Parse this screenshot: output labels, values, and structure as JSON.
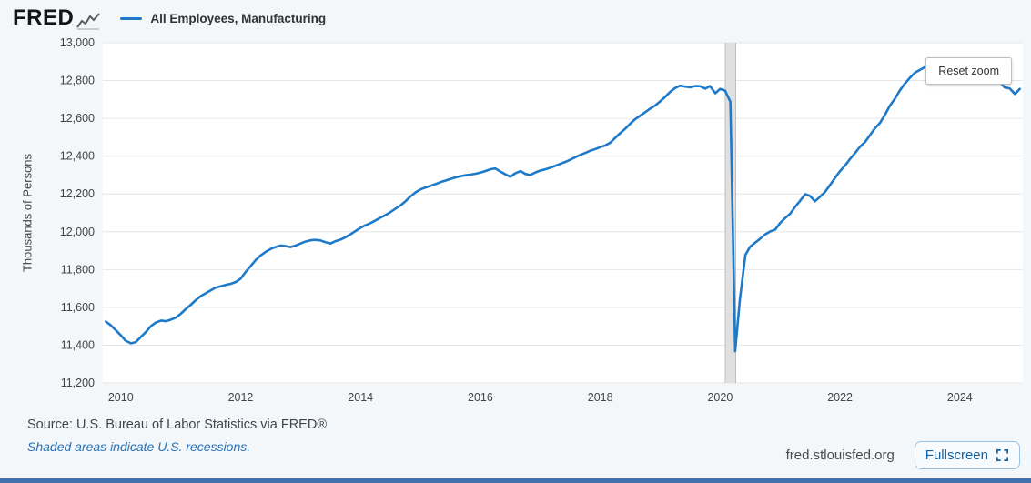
{
  "header": {
    "logo_text": "FRED",
    "legend": {
      "series_label": "All Employees, Manufacturing"
    }
  },
  "chart": {
    "reset_zoom_label": "Reset zoom"
  },
  "chart_data": {
    "type": "line",
    "title": "All Employees, Manufacturing",
    "xlabel": "",
    "ylabel": "Thousands of Persons",
    "xlim": [
      2009.7,
      2025.05
    ],
    "ylim": [
      11200,
      13000
    ],
    "y_tick_step": 200,
    "x_ticks": [
      2010,
      2012,
      2014,
      2016,
      2018,
      2020,
      2022,
      2024
    ],
    "grid": true,
    "legend_position": "top",
    "line_color": "#1e7ac9",
    "recession_bands": [
      {
        "start": 2020.085,
        "end": 2020.26
      }
    ],
    "series": [
      {
        "name": "All Employees, Manufacturing",
        "points": [
          [
            2009.75,
            11525
          ],
          [
            2009.83,
            11506
          ],
          [
            2009.92,
            11478
          ],
          [
            2010.0,
            11452
          ],
          [
            2010.08,
            11424
          ],
          [
            2010.17,
            11410
          ],
          [
            2010.25,
            11416
          ],
          [
            2010.33,
            11442
          ],
          [
            2010.42,
            11470
          ],
          [
            2010.5,
            11500
          ],
          [
            2010.58,
            11519
          ],
          [
            2010.67,
            11530
          ],
          [
            2010.75,
            11527
          ],
          [
            2010.83,
            11534
          ],
          [
            2010.92,
            11546
          ],
          [
            2011.0,
            11566
          ],
          [
            2011.08,
            11590
          ],
          [
            2011.17,
            11614
          ],
          [
            2011.25,
            11638
          ],
          [
            2011.33,
            11659
          ],
          [
            2011.42,
            11675
          ],
          [
            2011.5,
            11690
          ],
          [
            2011.58,
            11704
          ],
          [
            2011.67,
            11712
          ],
          [
            2011.75,
            11719
          ],
          [
            2011.83,
            11724
          ],
          [
            2011.92,
            11734
          ],
          [
            2012.0,
            11752
          ],
          [
            2012.08,
            11786
          ],
          [
            2012.17,
            11820
          ],
          [
            2012.25,
            11850
          ],
          [
            2012.33,
            11874
          ],
          [
            2012.42,
            11894
          ],
          [
            2012.5,
            11909
          ],
          [
            2012.58,
            11919
          ],
          [
            2012.67,
            11927
          ],
          [
            2012.75,
            11924
          ],
          [
            2012.83,
            11919
          ],
          [
            2012.92,
            11927
          ],
          [
            2013.0,
            11938
          ],
          [
            2013.08,
            11948
          ],
          [
            2013.17,
            11955
          ],
          [
            2013.25,
            11957
          ],
          [
            2013.33,
            11954
          ],
          [
            2013.42,
            11944
          ],
          [
            2013.5,
            11938
          ],
          [
            2013.58,
            11950
          ],
          [
            2013.67,
            11959
          ],
          [
            2013.75,
            11971
          ],
          [
            2013.83,
            11986
          ],
          [
            2013.92,
            12004
          ],
          [
            2014.0,
            12021
          ],
          [
            2014.08,
            12034
          ],
          [
            2014.17,
            12046
          ],
          [
            2014.25,
            12060
          ],
          [
            2014.33,
            12074
          ],
          [
            2014.42,
            12089
          ],
          [
            2014.5,
            12104
          ],
          [
            2014.58,
            12121
          ],
          [
            2014.67,
            12140
          ],
          [
            2014.75,
            12161
          ],
          [
            2014.83,
            12186
          ],
          [
            2014.92,
            12209
          ],
          [
            2015.0,
            12224
          ],
          [
            2015.08,
            12234
          ],
          [
            2015.17,
            12243
          ],
          [
            2015.25,
            12252
          ],
          [
            2015.33,
            12262
          ],
          [
            2015.42,
            12271
          ],
          [
            2015.5,
            12279
          ],
          [
            2015.58,
            12287
          ],
          [
            2015.67,
            12294
          ],
          [
            2015.75,
            12299
          ],
          [
            2015.83,
            12302
          ],
          [
            2015.92,
            12307
          ],
          [
            2016.0,
            12313
          ],
          [
            2016.08,
            12321
          ],
          [
            2016.17,
            12331
          ],
          [
            2016.25,
            12335
          ],
          [
            2016.33,
            12319
          ],
          [
            2016.42,
            12303
          ],
          [
            2016.5,
            12291
          ],
          [
            2016.58,
            12309
          ],
          [
            2016.67,
            12321
          ],
          [
            2016.75,
            12306
          ],
          [
            2016.83,
            12300
          ],
          [
            2016.92,
            12314
          ],
          [
            2017.0,
            12324
          ],
          [
            2017.08,
            12330
          ],
          [
            2017.17,
            12339
          ],
          [
            2017.25,
            12349
          ],
          [
            2017.33,
            12359
          ],
          [
            2017.42,
            12370
          ],
          [
            2017.5,
            12381
          ],
          [
            2017.58,
            12394
          ],
          [
            2017.67,
            12407
          ],
          [
            2017.75,
            12417
          ],
          [
            2017.83,
            12428
          ],
          [
            2017.92,
            12438
          ],
          [
            2018.0,
            12448
          ],
          [
            2018.08,
            12456
          ],
          [
            2018.17,
            12472
          ],
          [
            2018.25,
            12497
          ],
          [
            2018.33,
            12521
          ],
          [
            2018.42,
            12546
          ],
          [
            2018.5,
            12572
          ],
          [
            2018.58,
            12595
          ],
          [
            2018.67,
            12615
          ],
          [
            2018.75,
            12633
          ],
          [
            2018.83,
            12651
          ],
          [
            2018.92,
            12669
          ],
          [
            2019.0,
            12690
          ],
          [
            2019.08,
            12713
          ],
          [
            2019.17,
            12741
          ],
          [
            2019.25,
            12761
          ],
          [
            2019.33,
            12773
          ],
          [
            2019.42,
            12768
          ],
          [
            2019.5,
            12764
          ],
          [
            2019.58,
            12771
          ],
          [
            2019.67,
            12770
          ],
          [
            2019.75,
            12757
          ],
          [
            2019.83,
            12771
          ],
          [
            2019.92,
            12733
          ],
          [
            2020.0,
            12756
          ],
          [
            2020.08,
            12747
          ],
          [
            2020.17,
            12688
          ],
          [
            2020.25,
            11368
          ],
          [
            2020.33,
            11643
          ],
          [
            2020.42,
            11877
          ],
          [
            2020.5,
            11921
          ],
          [
            2020.58,
            11941
          ],
          [
            2020.67,
            11964
          ],
          [
            2020.75,
            11986
          ],
          [
            2020.83,
            12001
          ],
          [
            2020.92,
            12012
          ],
          [
            2021.0,
            12046
          ],
          [
            2021.08,
            12071
          ],
          [
            2021.17,
            12096
          ],
          [
            2021.25,
            12131
          ],
          [
            2021.33,
            12162
          ],
          [
            2021.42,
            12199
          ],
          [
            2021.5,
            12189
          ],
          [
            2021.58,
            12161
          ],
          [
            2021.67,
            12186
          ],
          [
            2021.75,
            12211
          ],
          [
            2021.83,
            12246
          ],
          [
            2021.92,
            12286
          ],
          [
            2022.0,
            12321
          ],
          [
            2022.08,
            12349
          ],
          [
            2022.17,
            12386
          ],
          [
            2022.25,
            12416
          ],
          [
            2022.33,
            12449
          ],
          [
            2022.42,
            12476
          ],
          [
            2022.5,
            12511
          ],
          [
            2022.58,
            12546
          ],
          [
            2022.67,
            12577
          ],
          [
            2022.75,
            12619
          ],
          [
            2022.83,
            12666
          ],
          [
            2022.92,
            12706
          ],
          [
            2023.0,
            12749
          ],
          [
            2023.08,
            12783
          ],
          [
            2023.17,
            12816
          ],
          [
            2023.25,
            12841
          ],
          [
            2023.33,
            12856
          ],
          [
            2023.42,
            12871
          ],
          [
            2023.5,
            12881
          ],
          [
            2023.58,
            12889
          ],
          [
            2023.67,
            12883
          ],
          [
            2023.75,
            12886
          ],
          [
            2023.83,
            12871
          ],
          [
            2023.92,
            12863
          ],
          [
            2024.0,
            12861
          ],
          [
            2024.08,
            12853
          ],
          [
            2024.17,
            12846
          ],
          [
            2024.25,
            12841
          ],
          [
            2024.33,
            12836
          ],
          [
            2024.42,
            12831
          ],
          [
            2024.5,
            12823
          ],
          [
            2024.58,
            12816
          ],
          [
            2024.67,
            12791
          ],
          [
            2024.75,
            12763
          ],
          [
            2024.83,
            12759
          ],
          [
            2024.92,
            12729
          ],
          [
            2025.0,
            12756
          ]
        ]
      }
    ]
  },
  "footer": {
    "source_text": "Source: U.S. Bureau of Labor Statistics via FRED®",
    "recession_note": "Shaded areas indicate U.S. recessions.",
    "site_link": "fred.stlouisfed.org",
    "fullscreen_label": "Fullscreen"
  },
  "colors": {
    "line": "#1e7ac9",
    "grid": "#e6e6e6",
    "recession": "#e0e0e0",
    "recession_edge": "#bdbdbd",
    "page_bg": "#f3f7fa",
    "link_blue": "#2970b6",
    "bottom_bar": "#4170ad",
    "fullscreen_text": "#1261a0",
    "fullscreen_border": "#9dc0e0"
  }
}
